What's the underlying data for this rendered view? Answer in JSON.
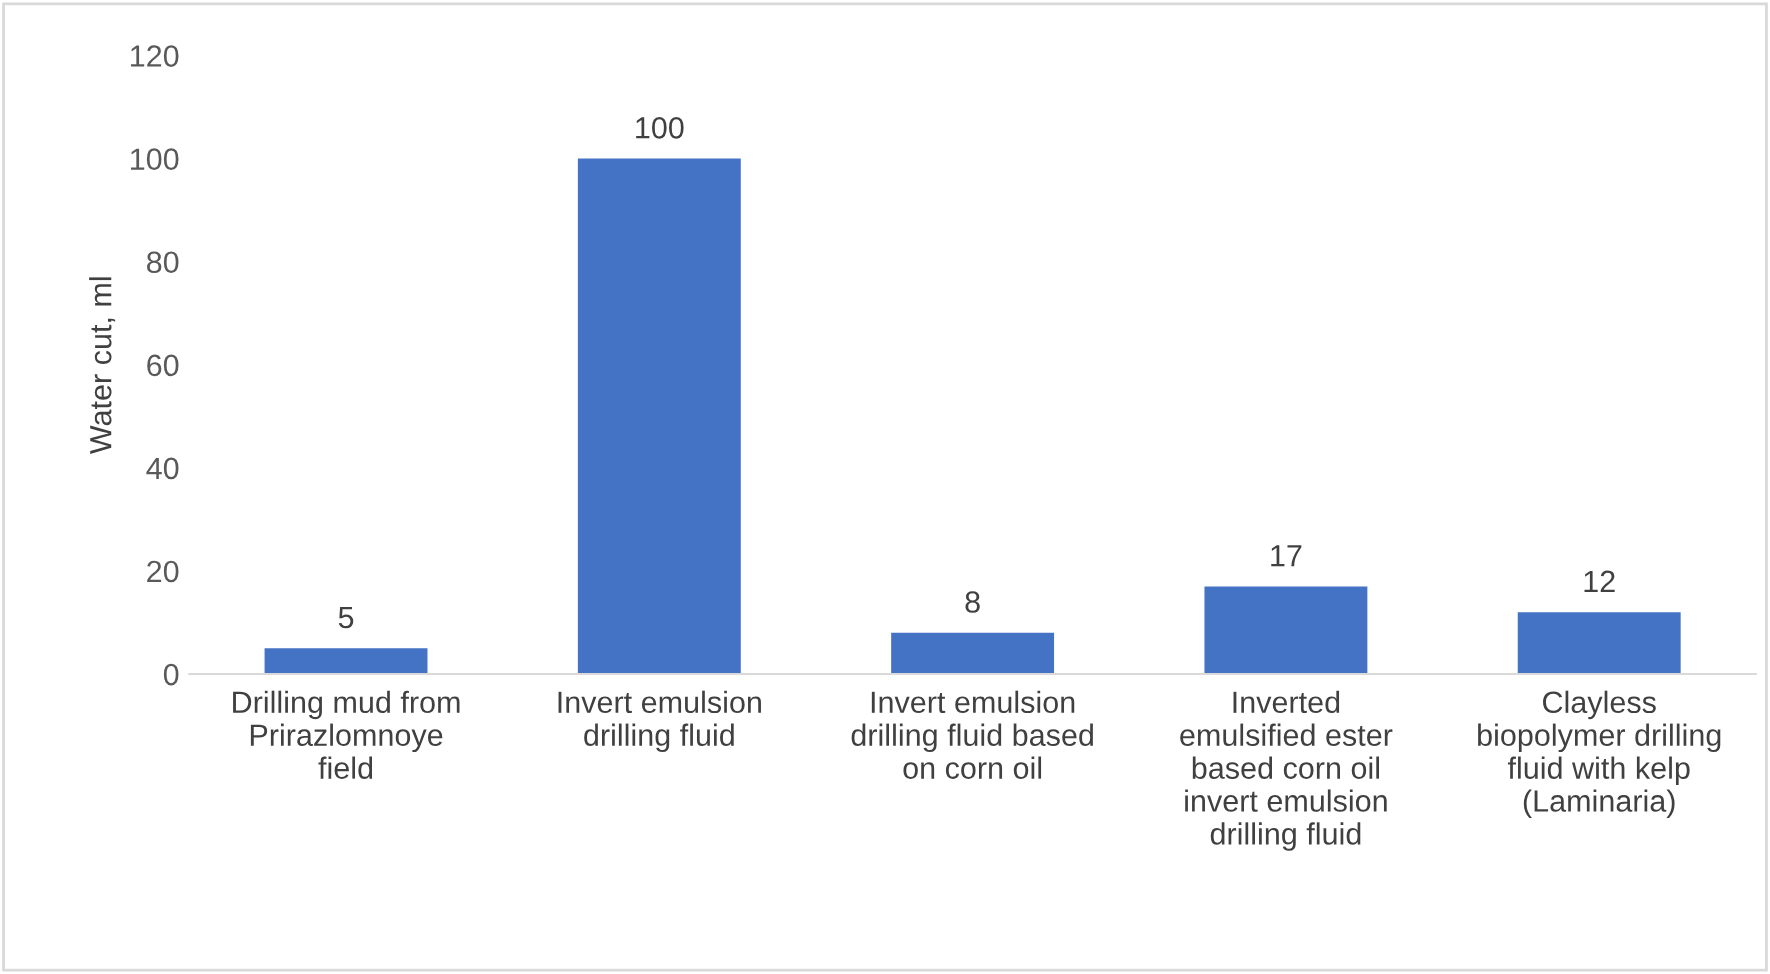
{
  "chart_data": {
    "type": "bar",
    "ylabel": "Water cut, ml",
    "categories": [
      "Drilling mud from\nPrirazlomnoye\nfield",
      "Invert emulsion\ndrilling fluid",
      "Invert emulsion\ndrilling fluid based\non corn oil",
      "Inverted\nemulsified ester\nbased corn oil\ninvert emulsion\ndrilling fluid",
      "Clayless\nbiopolymer drilling\nfluid with kelp\n(Laminaria)"
    ],
    "values": [
      5,
      100,
      8,
      17,
      12
    ],
    "color": "#4472c4",
    "ylim": [
      0,
      120
    ],
    "yticks": [
      0,
      20,
      40,
      60,
      80,
      100,
      120
    ],
    "grid": false,
    "data_labels": true
  }
}
